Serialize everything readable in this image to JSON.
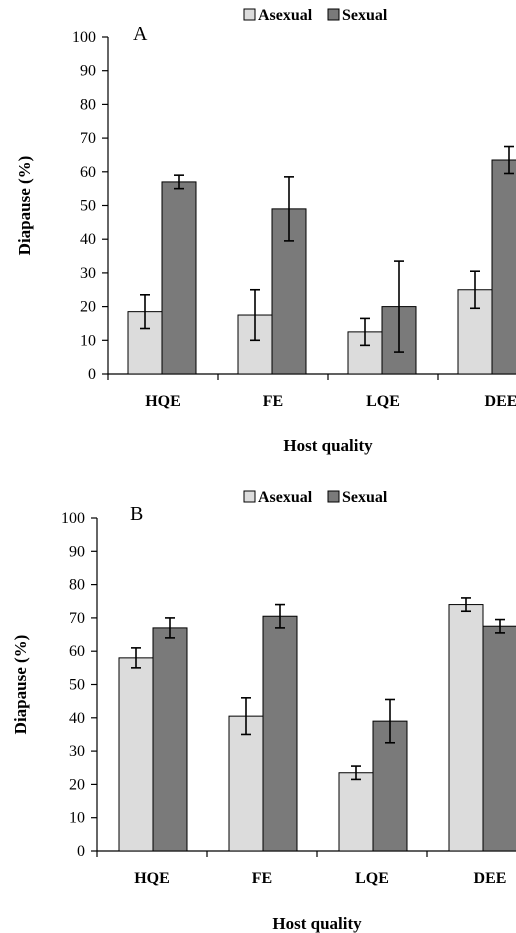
{
  "chart_data": [
    {
      "type": "bar",
      "panel_label": "A",
      "categories": [
        "HQE",
        "FE",
        "LQE",
        "DEE"
      ],
      "series": [
        {
          "name": "Asexual",
          "color": "#dcdcdc",
          "values": [
            18.5,
            17.5,
            12.5,
            25
          ],
          "errors": [
            5,
            7.5,
            4,
            5.5
          ]
        },
        {
          "name": "Sexual",
          "color": "#7a7a7a",
          "values": [
            57,
            49,
            20,
            63.5
          ],
          "errors": [
            2,
            9.5,
            13.5,
            4
          ]
        }
      ],
      "xlabel": "Host quality",
      "ylabel": "Diapause (%)",
      "ylim": [
        0,
        100
      ],
      "yticks": [
        0,
        10,
        20,
        30,
        40,
        50,
        60,
        70,
        80,
        90,
        100
      ],
      "legend_position": "top-center",
      "grid": false
    },
    {
      "type": "bar",
      "panel_label": "B",
      "categories": [
        "HQE",
        "FE",
        "LQE",
        "DEE"
      ],
      "series": [
        {
          "name": "Asexual",
          "color": "#dcdcdc",
          "values": [
            58,
            40.5,
            23.5,
            74
          ],
          "errors": [
            3,
            5.5,
            2,
            2
          ]
        },
        {
          "name": "Sexual",
          "color": "#7a7a7a",
          "values": [
            67,
            70.5,
            39,
            67.5
          ],
          "errors": [
            3,
            3.5,
            6.5,
            2
          ]
        }
      ],
      "xlabel": "Host quality",
      "ylabel": "Diapause (%)",
      "ylim": [
        0,
        100
      ],
      "yticks": [
        0,
        10,
        20,
        30,
        40,
        50,
        60,
        70,
        80,
        90,
        100
      ],
      "legend_position": "top-center",
      "grid": false
    }
  ]
}
